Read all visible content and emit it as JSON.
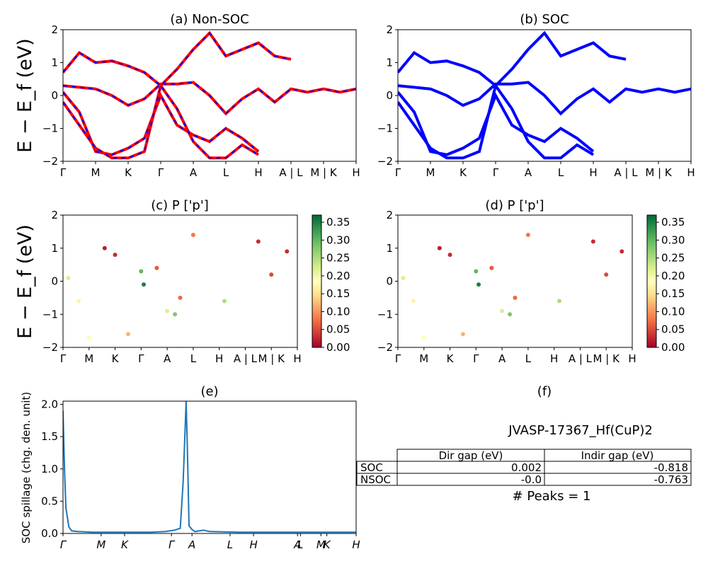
{
  "figure": {
    "ylabel_energy": "E − E_f (eV)",
    "kpath": [
      "Γ",
      "M",
      "K",
      "Γ",
      "A",
      "L",
      "H",
      "A | L",
      "M | K",
      "H"
    ],
    "kpath_e": [
      "Γ",
      "M",
      "K",
      "Γ",
      "A",
      "L",
      "H",
      "A",
      "L",
      "M",
      "K",
      "H"
    ],
    "colorbar_ticks": [
      "0.00",
      "0.05",
      "0.10",
      "0.15",
      "0.20",
      "0.25",
      "0.30",
      "0.35"
    ],
    "yticks_energy": [
      "2",
      "1",
      "0",
      "−1",
      "−2"
    ],
    "yticks_spillage": [
      "0.0",
      "0.5",
      "1.0",
      "1.5",
      "2.0"
    ],
    "colors": {
      "nonsoc_main": "#ff0000",
      "nonsoc_dash": "#0000ff",
      "soc": "#0000ff",
      "spillage": "#1f77b4"
    }
  },
  "panels": {
    "a": {
      "title": "(a) Non-SOC"
    },
    "b": {
      "title": "(b) SOC"
    },
    "c": {
      "title": "(c)  P ['p']"
    },
    "d": {
      "title": "(d) P ['p']"
    },
    "e": {
      "title": "(e)",
      "ylabel": "SOC spillage (chg. den. unit)"
    },
    "f": {
      "title": "(f)",
      "material": "JVASP-17367_Hf(CuP)2",
      "headers": [
        "Dir gap (eV)",
        "Indir gap (eV)"
      ],
      "rows": [
        {
          "label": "SOC",
          "dir": "0.002",
          "indir": "-0.818"
        },
        {
          "label": "NSOC",
          "dir": "-0.0",
          "indir": "-0.763"
        }
      ],
      "peaks": "# Peaks = 1"
    }
  },
  "chart_data": [
    {
      "type": "line",
      "title": "(a) Non-SOC",
      "ylabel": "E − E_f (eV)",
      "ylim": [
        -2,
        2
      ],
      "x_ticks": [
        "Γ",
        "M",
        "K",
        "Γ",
        "A",
        "L",
        "H",
        "A | L",
        "M | K",
        "H"
      ],
      "series": [
        {
          "x": [
            0,
            0.5,
            1.0,
            1.5,
            2.0,
            2.5,
            3.0,
            3.5,
            4.0,
            4.5,
            5.0,
            5.5,
            6.0,
            6.5,
            7.0,
            7.5,
            8.0,
            8.5,
            9.0
          ],
          "values": [
            0.3,
            0.25,
            0.2,
            0.0,
            -0.3,
            -0.1,
            0.35,
            0.35,
            0.4,
            0.0,
            -0.55,
            -0.1,
            0.2,
            -0.2,
            0.2,
            0.1,
            0.2,
            0.1,
            0.2
          ]
        },
        {
          "x": [
            0,
            0.5,
            1.0,
            1.5,
            2.0,
            2.5,
            3.0,
            3.5,
            4.0,
            4.5,
            5.0,
            5.5,
            6.0,
            6.5,
            7.0
          ],
          "values": [
            0.7,
            1.3,
            1.0,
            1.05,
            0.9,
            0.7,
            0.3,
            0.8,
            1.4,
            1.9,
            1.2,
            1.4,
            1.6,
            1.2,
            1.1
          ]
        },
        {
          "x": [
            0,
            0.5,
            1.0,
            1.5,
            2.0,
            2.5,
            3.0,
            3.5,
            4.0,
            4.5,
            5.0,
            5.5,
            6.0
          ],
          "values": [
            0.1,
            -0.5,
            -1.7,
            -1.8,
            -1.6,
            -1.3,
            0.0,
            -0.9,
            -1.2,
            -1.4,
            -1.0,
            -1.3,
            -1.7
          ]
        },
        {
          "x": [
            0,
            0.5,
            1.0,
            1.5,
            2.0,
            2.5,
            3.0,
            3.5,
            4.0,
            4.5,
            5.0,
            5.5,
            6.0
          ],
          "values": [
            -0.2,
            -0.9,
            -1.6,
            -1.9,
            -1.9,
            -1.7,
            0.3,
            -0.4,
            -1.4,
            -1.9,
            -1.9,
            -1.5,
            -1.8
          ]
        }
      ]
    },
    {
      "type": "line",
      "title": "(b) SOC",
      "ylim": [
        -2,
        2
      ],
      "x_ticks": [
        "Γ",
        "M",
        "K",
        "Γ",
        "A",
        "L",
        "H",
        "A | L",
        "M | K",
        "H"
      ],
      "series": [
        {
          "x": [
            0,
            0.5,
            1.0,
            1.5,
            2.0,
            2.5,
            3.0,
            3.5,
            4.0,
            4.5,
            5.0,
            5.5,
            6.0,
            6.5,
            7.0,
            7.5,
            8.0,
            8.5,
            9.0
          ],
          "values": [
            0.3,
            0.25,
            0.2,
            0.0,
            -0.3,
            -0.1,
            0.35,
            0.35,
            0.4,
            0.0,
            -0.55,
            -0.1,
            0.2,
            -0.2,
            0.2,
            0.1,
            0.2,
            0.1,
            0.2
          ]
        },
        {
          "x": [
            0,
            0.5,
            1.0,
            1.5,
            2.0,
            2.5,
            3.0,
            3.5,
            4.0,
            4.5,
            5.0,
            5.5,
            6.0,
            6.5,
            7.0
          ],
          "values": [
            0.7,
            1.3,
            1.0,
            1.05,
            0.9,
            0.7,
            0.3,
            0.8,
            1.4,
            1.9,
            1.2,
            1.4,
            1.6,
            1.2,
            1.1
          ]
        },
        {
          "x": [
            0,
            0.5,
            1.0,
            1.5,
            2.0,
            2.5,
            3.0,
            3.5,
            4.0,
            4.5,
            5.0,
            5.5,
            6.0
          ],
          "values": [
            0.1,
            -0.5,
            -1.7,
            -1.8,
            -1.6,
            -1.3,
            0.0,
            -0.9,
            -1.2,
            -1.4,
            -1.0,
            -1.3,
            -1.7
          ]
        },
        {
          "x": [
            0,
            0.5,
            1.0,
            1.5,
            2.0,
            2.5,
            3.0,
            3.5,
            4.0,
            4.5,
            5.0,
            5.5,
            6.0
          ],
          "values": [
            -0.2,
            -0.9,
            -1.6,
            -1.9,
            -1.9,
            -1.7,
            0.3,
            -0.4,
            -1.4,
            -1.9,
            -1.9,
            -1.5,
            -1.8
          ]
        }
      ]
    },
    {
      "type": "scatter",
      "title": "(c)  P ['p']",
      "ylim": [
        -2,
        2
      ],
      "colorbar_range": [
        0.0,
        0.37
      ],
      "x_ticks": [
        "Γ",
        "M",
        "K",
        "Γ",
        "A",
        "L",
        "H",
        "A | L",
        "M | K",
        "H"
      ],
      "points": [
        {
          "x": 0.2,
          "y": 0.1,
          "v": 0.22
        },
        {
          "x": 0.6,
          "y": -0.6,
          "v": 0.17
        },
        {
          "x": 1.0,
          "y": -1.7,
          "v": 0.18
        },
        {
          "x": 1.6,
          "y": 1.0,
          "v": 0.02
        },
        {
          "x": 2.0,
          "y": 0.8,
          "v": 0.03
        },
        {
          "x": 2.5,
          "y": -1.6,
          "v": 0.12
        },
        {
          "x": 3.0,
          "y": 0.3,
          "v": 0.3
        },
        {
          "x": 3.1,
          "y": -0.1,
          "v": 0.35
        },
        {
          "x": 3.6,
          "y": 0.4,
          "v": 0.06
        },
        {
          "x": 4.0,
          "y": -0.9,
          "v": 0.22
        },
        {
          "x": 4.3,
          "y": -1.0,
          "v": 0.28
        },
        {
          "x": 4.5,
          "y": -0.5,
          "v": 0.07
        },
        {
          "x": 5.0,
          "y": 1.4,
          "v": 0.08
        },
        {
          "x": 6.2,
          "y": -0.6,
          "v": 0.25
        },
        {
          "x": 7.5,
          "y": 1.2,
          "v": 0.03
        },
        {
          "x": 8.0,
          "y": 0.2,
          "v": 0.05
        },
        {
          "x": 8.6,
          "y": 0.9,
          "v": 0.03
        }
      ]
    },
    {
      "type": "scatter",
      "title": "(d) P ['p']",
      "ylim": [
        -2,
        2
      ],
      "colorbar_range": [
        0.0,
        0.37
      ],
      "x_ticks": [
        "Γ",
        "M",
        "K",
        "Γ",
        "A",
        "L",
        "H",
        "A | L",
        "M | K",
        "H"
      ],
      "points": [
        {
          "x": 0.2,
          "y": 0.1,
          "v": 0.22
        },
        {
          "x": 0.6,
          "y": -0.6,
          "v": 0.17
        },
        {
          "x": 1.0,
          "y": -1.7,
          "v": 0.18
        },
        {
          "x": 1.6,
          "y": 1.0,
          "v": 0.02
        },
        {
          "x": 2.0,
          "y": 0.8,
          "v": 0.03
        },
        {
          "x": 2.5,
          "y": -1.6,
          "v": 0.12
        },
        {
          "x": 3.0,
          "y": 0.3,
          "v": 0.3
        },
        {
          "x": 3.1,
          "y": -0.1,
          "v": 0.35
        },
        {
          "x": 3.6,
          "y": 0.4,
          "v": 0.06
        },
        {
          "x": 4.0,
          "y": -0.9,
          "v": 0.22
        },
        {
          "x": 4.3,
          "y": -1.0,
          "v": 0.28
        },
        {
          "x": 4.5,
          "y": -0.5,
          "v": 0.07
        },
        {
          "x": 5.0,
          "y": 1.4,
          "v": 0.08
        },
        {
          "x": 6.2,
          "y": -0.6,
          "v": 0.25
        },
        {
          "x": 7.5,
          "y": 1.2,
          "v": 0.03
        },
        {
          "x": 8.0,
          "y": 0.2,
          "v": 0.05
        },
        {
          "x": 8.6,
          "y": 0.9,
          "v": 0.03
        }
      ]
    },
    {
      "type": "line",
      "title": "(e)",
      "ylabel": "SOC spillage (chg. den. unit)",
      "ylim": [
        0,
        2.05
      ],
      "x_ticks": [
        "Γ",
        "M",
        "K",
        "Γ",
        "A",
        "L",
        "H",
        "A",
        "L",
        "M",
        "K",
        "H"
      ],
      "series": [
        {
          "x": [
            0,
            0.05,
            0.1,
            0.2,
            0.3,
            0.5,
            1.0,
            2.0,
            3.0,
            3.5,
            3.8,
            4.0,
            4.1,
            4.2,
            4.25,
            4.3,
            4.4,
            4.5,
            4.8,
            5.0,
            6.0,
            7.0,
            8.0,
            9.0,
            10.0
          ],
          "values": [
            1.9,
            1.0,
            0.4,
            0.1,
            0.04,
            0.03,
            0.02,
            0.02,
            0.02,
            0.03,
            0.05,
            0.08,
            0.8,
            2.05,
            1.2,
            0.12,
            0.06,
            0.03,
            0.05,
            0.03,
            0.02,
            0.02,
            0.02,
            0.02,
            0.02
          ]
        }
      ]
    }
  ]
}
